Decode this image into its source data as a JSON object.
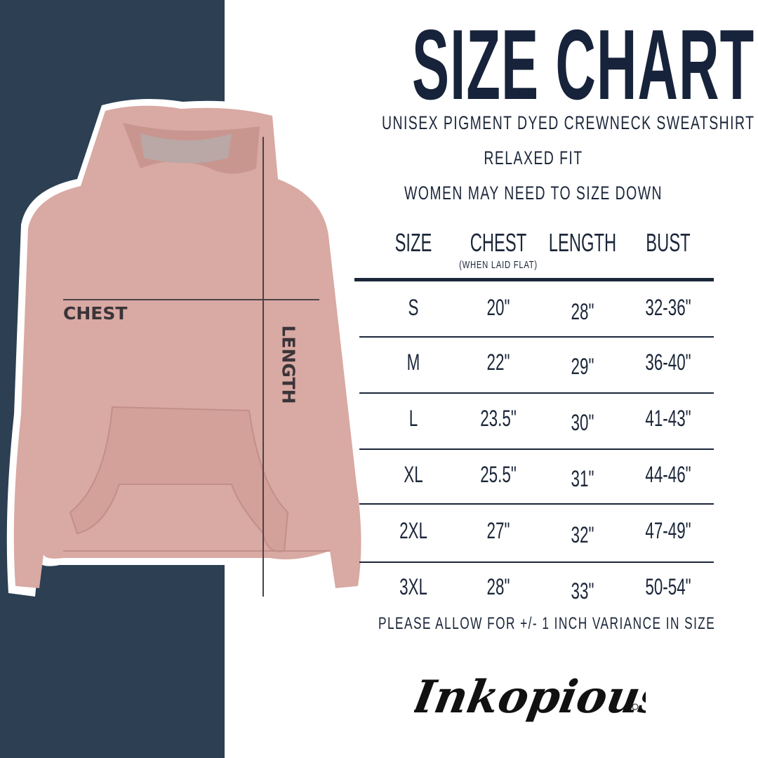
{
  "title": "SIZE CHART",
  "subtitle": "UNISEX PIGMENT DYED CREWNECK SWEATSHIRT",
  "fit": "RELAXED FIT",
  "advice": "WOMEN MAY NEED TO SIZE DOWN",
  "diagram": {
    "chest_label": "CHEST",
    "length_label": "LENGTH"
  },
  "table": {
    "headers": [
      "SIZE",
      "CHEST",
      "LENGTH",
      "BUST"
    ],
    "chest_note": "(WHEN LAID FLAT)",
    "rows": [
      [
        "S",
        "20\"",
        "28\"",
        "32-36\""
      ],
      [
        "M",
        "22\"",
        "29\"",
        "36-40\""
      ],
      [
        "L",
        "23.5\"",
        "30\"",
        "41-43\""
      ],
      [
        "XL",
        "25.5\"",
        "31\"",
        "44-46\""
      ],
      [
        "2XL",
        "27\"",
        "32\"",
        "47-49\""
      ],
      [
        "3XL",
        "28\"",
        "33\"",
        "50-54\""
      ]
    ]
  },
  "footnote": "PLEASE ALLOW FOR +/- 1 INCH VARIANCE IN SIZE",
  "brand": "Inkopious",
  "colors": {
    "navy": "#2c3f53",
    "text": "#1b2639",
    "hoodie": "#d9a9a3"
  }
}
